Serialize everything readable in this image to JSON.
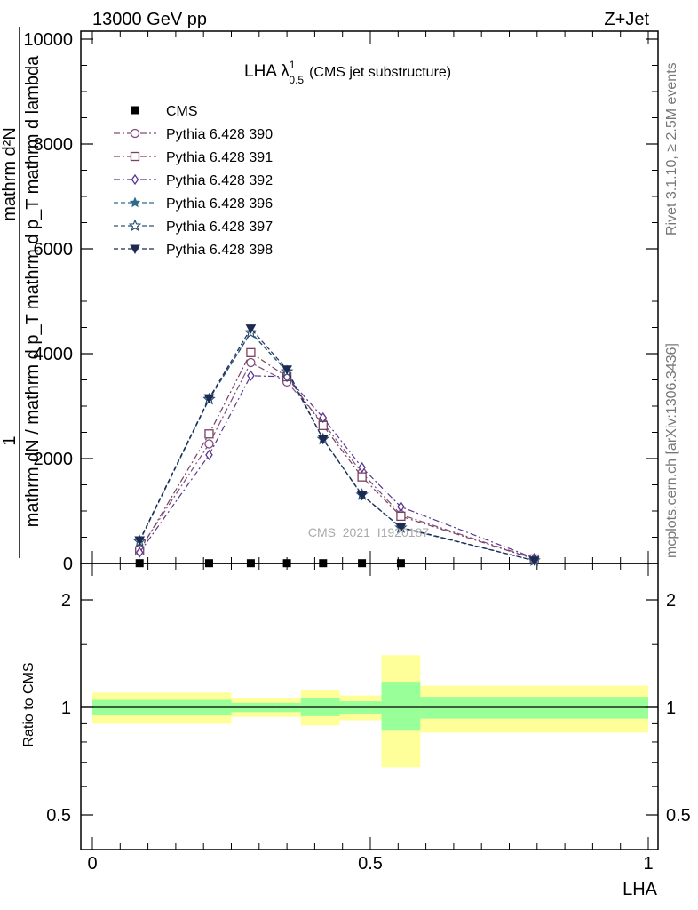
{
  "header": {
    "left": "13000 GeV pp",
    "right": "Z+Jet"
  },
  "side": {
    "rivet": "Rivet 3.1.10, ≥ 2.5M events",
    "mcplots": "mcplots.cern.ch [arXiv:1306.3436]"
  },
  "title": {
    "main": "LHA λ",
    "sup": "1",
    "sub": "0.5",
    "extra": "(CMS jet substructure)"
  },
  "watermark": "CMS_2021_I1920187",
  "axes": {
    "ylabel_top_num": "1",
    "ylabel_top_den": "mathrm dN / mathrm d p_T mathrm d p_T mathrm d lambda",
    "ylabel_top_num2": "mathrm d²N",
    "ylabel_top_den_frag1": "mathrm dN",
    "ylabel_bottom": "Ratio to CMS",
    "xlabel": "LHA"
  },
  "colors": {
    "green_band": "#99ff99",
    "yellow_band": "#ffff99",
    "p390": "#7d4e7d",
    "p391": "#7b4060",
    "p392": "#5a3590",
    "p396": "#2f6a8a",
    "p397": "#2c5275",
    "p398": "#1d2a52"
  },
  "chart_data": {
    "type": "line",
    "top_panel": {
      "xlim": [
        0,
        1
      ],
      "ylim": [
        0,
        10200
      ],
      "y_ticks": [
        0,
        2000,
        4000,
        6000,
        8000,
        10000
      ],
      "y_tick_labels": [
        "0",
        "2000",
        "4000",
        "6000",
        "8000",
        "10000"
      ],
      "x": [
        0.085,
        0.21,
        0.285,
        0.35,
        0.415,
        0.485,
        0.555,
        0.795
      ],
      "series": [
        {
          "name": "CMS",
          "key": "cms",
          "values": [
            5,
            5,
            5,
            5,
            5,
            5,
            5,
            0
          ]
        },
        {
          "name": "Pythia 6.428 390",
          "key": "p390",
          "values": [
            270,
            2280,
            3830,
            3460,
            2680,
            1730,
            930,
            90
          ]
        },
        {
          "name": "Pythia 6.428 391",
          "key": "p391",
          "values": [
            240,
            2470,
            4020,
            3560,
            2630,
            1650,
            900,
            85
          ]
        },
        {
          "name": "Pythia 6.428 392",
          "key": "p392",
          "values": [
            210,
            2070,
            3580,
            3560,
            2780,
            1830,
            1080,
            100
          ]
        },
        {
          "name": "Pythia 6.428 396",
          "key": "p396",
          "values": [
            440,
            3140,
            4410,
            3660,
            2370,
            1310,
            680,
            55
          ]
        },
        {
          "name": "Pythia 6.428 397",
          "key": "p397",
          "values": [
            420,
            3130,
            4400,
            3660,
            2370,
            1310,
            680,
            55
          ]
        },
        {
          "name": "Pythia 6.428 398",
          "key": "p398",
          "values": [
            440,
            3150,
            4480,
            3700,
            2370,
            1300,
            690,
            55
          ]
        }
      ]
    },
    "ratio_panel": {
      "ylabel": "Ratio to CMS",
      "y_ticks": [
        0.5,
        1,
        2
      ],
      "y_tick_labels": [
        "0.5",
        "1",
        "2"
      ],
      "x_ticks": [
        0,
        0.5,
        1
      ],
      "x_tick_labels": [
        "0",
        "0.5",
        "1"
      ],
      "bins": [
        {
          "lo": 0.0,
          "hi": 0.25,
          "green": [
            0.95,
            1.05
          ],
          "yellow": [
            0.9,
            1.1
          ]
        },
        {
          "lo": 0.25,
          "hi": 0.33,
          "green": [
            0.97,
            1.03
          ],
          "yellow": [
            0.94,
            1.06
          ]
        },
        {
          "lo": 0.33,
          "hi": 0.375,
          "green": [
            0.97,
            1.03
          ],
          "yellow": [
            0.94,
            1.06
          ]
        },
        {
          "lo": 0.375,
          "hi": 0.445,
          "green": [
            0.945,
            1.065
          ],
          "yellow": [
            0.89,
            1.12
          ]
        },
        {
          "lo": 0.445,
          "hi": 0.52,
          "green": [
            0.96,
            1.04
          ],
          "yellow": [
            0.92,
            1.08
          ]
        },
        {
          "lo": 0.52,
          "hi": 0.59,
          "green": [
            0.86,
            1.18
          ],
          "yellow": [
            0.68,
            1.4
          ]
        },
        {
          "lo": 0.59,
          "hi": 1.0,
          "green": [
            0.93,
            1.07
          ],
          "yellow": [
            0.85,
            1.15
          ]
        }
      ]
    }
  }
}
